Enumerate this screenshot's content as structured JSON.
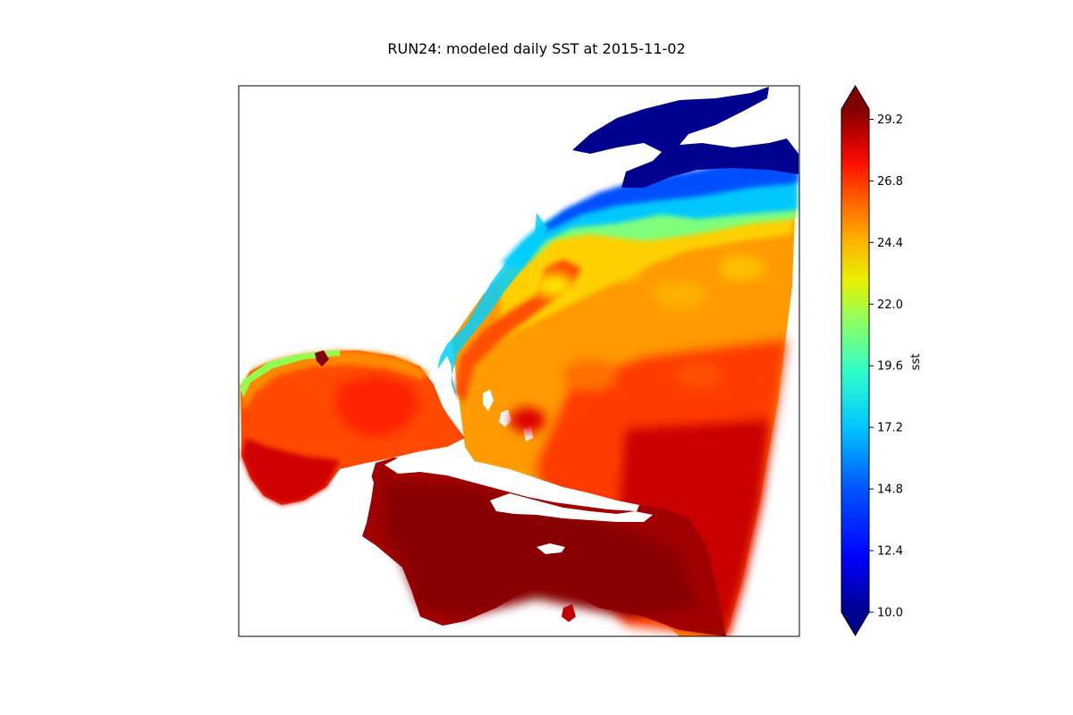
{
  "title": "RUN24: modeled daily SST at 2015-11-02",
  "map": {
    "variable": "sst",
    "land_color": "#ffffff",
    "frame_color": "#000000"
  },
  "colorbar": {
    "label": "sst",
    "colormap": "jet",
    "min": 10.0,
    "max": 29.6,
    "ticks": [
      "10.0",
      "12.4",
      "14.8",
      "17.2",
      "19.6",
      "22.0",
      "24.4",
      "26.8",
      "29.2"
    ],
    "extend": "both",
    "under_color": "#00007f",
    "over_color": "#7f0000"
  },
  "colors": {
    "c10": "#00008f",
    "c12": "#0000ff",
    "c15": "#0060ff",
    "c17": "#00c0ff",
    "c19": "#40ffb0",
    "c21": "#a0ff50",
    "c22": "#e8f000",
    "c24": "#ffc000",
    "c25": "#ffa000",
    "c26": "#ff7000",
    "c27": "#ff3000",
    "c28": "#e80000",
    "c29": "#b00000",
    "c30": "#800000"
  }
}
